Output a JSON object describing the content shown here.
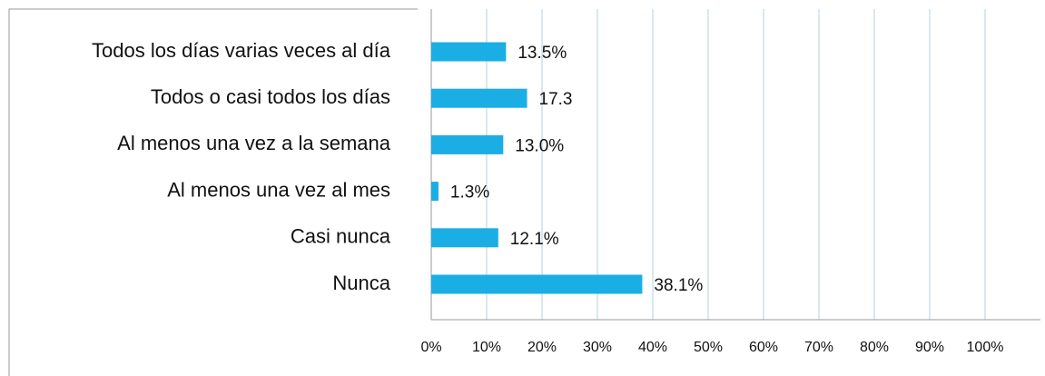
{
  "chart_data": {
    "type": "bar",
    "orientation": "horizontal",
    "categories": [
      "Todos los días varias veces al día",
      "Todos o casi todos los días",
      "Al menos una vez a la semana",
      "Al menos una vez al mes",
      "Casi nunca",
      "Nunca"
    ],
    "values": [
      13.5,
      17.3,
      13.0,
      1.3,
      12.1,
      38.1
    ],
    "value_labels": [
      "13.5%",
      "17.3",
      "13.0%",
      "1.3%",
      "12.1%",
      "38.1%"
    ],
    "color": "#1aaee5",
    "xlim": [
      0,
      110
    ],
    "xticks": [
      {
        "value": 0,
        "label": "0%"
      },
      {
        "value": 10,
        "label": "10%"
      },
      {
        "value": 20,
        "label": "20%"
      },
      {
        "value": 30,
        "label": "30%"
      },
      {
        "value": 40,
        "label": "40%"
      },
      {
        "value": 50,
        "label": "50%"
      },
      {
        "value": 60,
        "label": "60%"
      },
      {
        "value": 70,
        "label": "70%"
      },
      {
        "value": 80,
        "label": "80%"
      },
      {
        "value": 90,
        "label": "90%"
      },
      {
        "value": 100,
        "label": "100%"
      }
    ],
    "grid": true
  }
}
